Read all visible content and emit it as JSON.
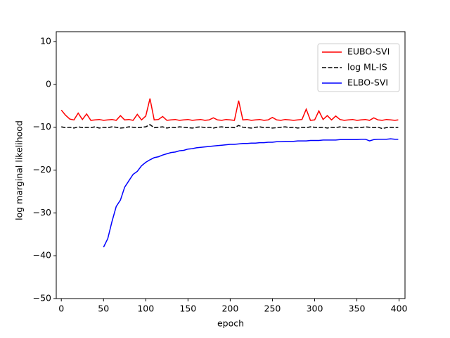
{
  "chart_data": {
    "type": "line",
    "xlabel": "epoch",
    "ylabel": "log marginal likelihood",
    "x": [
      0,
      5,
      10,
      15,
      20,
      25,
      30,
      35,
      40,
      45,
      50,
      55,
      60,
      65,
      70,
      75,
      80,
      85,
      90,
      95,
      100,
      105,
      110,
      115,
      120,
      125,
      130,
      135,
      140,
      145,
      150,
      155,
      160,
      165,
      170,
      175,
      180,
      185,
      190,
      195,
      200,
      205,
      210,
      215,
      220,
      225,
      230,
      235,
      240,
      245,
      250,
      255,
      260,
      265,
      270,
      275,
      280,
      285,
      290,
      295,
      300,
      305,
      310,
      315,
      320,
      325,
      330,
      335,
      340,
      345,
      350,
      355,
      360,
      365,
      370,
      375,
      380,
      385,
      390,
      395,
      399
    ],
    "series": [
      {
        "name": "EUBO-SVI",
        "color": "#ff0000",
        "dash": "solid",
        "values": [
          -6,
          -7.2,
          -8.1,
          -8.3,
          -6.7,
          -8.2,
          -6.9,
          -8.4,
          -8.3,
          -8.2,
          -8.4,
          -8.3,
          -8.2,
          -8.4,
          -7.3,
          -8.3,
          -8.2,
          -8.4,
          -7,
          -8.3,
          -7.4,
          -3.3,
          -8.3,
          -8.2,
          -7.5,
          -8.4,
          -8.3,
          -8.2,
          -8.4,
          -8.3,
          -8.2,
          -8.4,
          -8.3,
          -8.2,
          -8.4,
          -8.3,
          -7.8,
          -8.3,
          -8.4,
          -8.2,
          -8.3,
          -8.4,
          -3.8,
          -8.3,
          -8.2,
          -8.4,
          -8.3,
          -8.2,
          -8.4,
          -8.3,
          -7.7,
          -8.3,
          -8.4,
          -8.2,
          -8.3,
          -8.4,
          -8.3,
          -8.2,
          -5.8,
          -8.4,
          -8.3,
          -6.2,
          -8.2,
          -7.3,
          -8.3,
          -7.4,
          -8.2,
          -8.4,
          -8.3,
          -8.2,
          -8.4,
          -8.3,
          -8.2,
          -8.4,
          -7.8,
          -8.3,
          -8.4,
          -8.2,
          -8.3,
          -8.4,
          -8.3
        ]
      },
      {
        "name": "log ML-IS",
        "color": "#000000",
        "dash": "dashed",
        "values": [
          -9.9,
          -10.1,
          -10,
          -10.2,
          -9.9,
          -10.1,
          -10,
          -10.1,
          -9.9,
          -10.2,
          -10,
          -10.1,
          -9.9,
          -10,
          -10.2,
          -10.1,
          -9.9,
          -10,
          -10.1,
          -10,
          -9.9,
          -9.4,
          -10.1,
          -10,
          -9.9,
          -10.2,
          -10,
          -10.1,
          -9.9,
          -10,
          -10.1,
          -10.2,
          -10,
          -9.9,
          -10.1,
          -10,
          -10.2,
          -10,
          -9.9,
          -10.1,
          -10,
          -10.1,
          -9.6,
          -10,
          -10.1,
          -10.2,
          -10,
          -9.9,
          -10.1,
          -10,
          -10.2,
          -10.1,
          -10,
          -9.9,
          -10.1,
          -10,
          -10.2,
          -10,
          -10.1,
          -9.9,
          -10,
          -10.1,
          -10,
          -10.2,
          -10,
          -10.1,
          -9.9,
          -10,
          -10.1,
          -10.2,
          -10,
          -10.1,
          -9.9,
          -10,
          -10.1,
          -10,
          -10.3,
          -10.1,
          -10,
          -10.1,
          -10
        ]
      },
      {
        "name": "ELBO-SVI",
        "color": "#0000ff",
        "dash": "solid",
        "values": [
          null,
          null,
          null,
          null,
          null,
          null,
          null,
          null,
          null,
          null,
          -38,
          -36,
          -32,
          -28.5,
          -27,
          -24,
          -22.5,
          -21,
          -20.3,
          -19,
          -18.2,
          -17.6,
          -17.1,
          -16.9,
          -16.5,
          -16.2,
          -15.9,
          -15.8,
          -15.5,
          -15.4,
          -15.1,
          -15,
          -14.8,
          -14.7,
          -14.6,
          -14.5,
          -14.4,
          -14.3,
          -14.2,
          -14.1,
          -14,
          -14,
          -13.9,
          -13.8,
          -13.8,
          -13.7,
          -13.7,
          -13.6,
          -13.6,
          -13.5,
          -13.5,
          -13.4,
          -13.4,
          -13.3,
          -13.3,
          -13.3,
          -13.2,
          -13.2,
          -13.2,
          -13.1,
          -13.1,
          -13.1,
          -13,
          -13,
          -13,
          -13,
          -12.9,
          -12.9,
          -12.9,
          -12.9,
          -12.9,
          -12.8,
          -12.8,
          -13.2,
          -12.9,
          -12.8,
          -12.8,
          -12.8,
          -12.7,
          -12.8,
          -12.8
        ]
      }
    ],
    "xlim": [
      -6,
      407
    ],
    "ylim": [
      -50,
      12.3
    ],
    "xticks": [
      0,
      50,
      100,
      150,
      200,
      250,
      300,
      350,
      400
    ],
    "yticks": [
      10,
      0,
      {
        "value": -10,
        "label": "−10"
      },
      {
        "value": -20,
        "label": "−20"
      },
      {
        "value": -30,
        "label": "−30"
      },
      {
        "value": -40,
        "label": "−40"
      },
      {
        "value": -50,
        "label": "−50"
      }
    ],
    "legend": "upper right"
  }
}
